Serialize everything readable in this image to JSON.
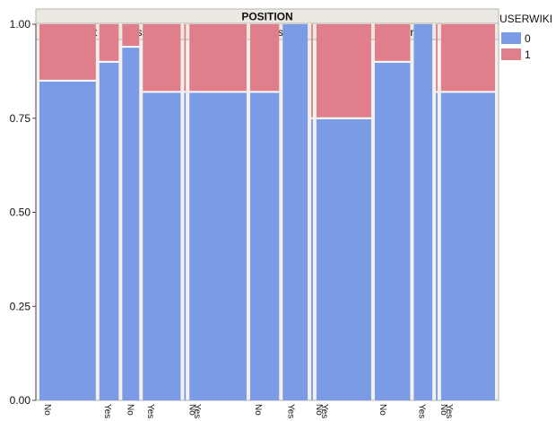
{
  "chart_data": {
    "type": "mosaic",
    "title": "POSITION",
    "xlabel": "",
    "ylabel": "",
    "ylim": [
      0,
      1
    ],
    "y_ticks": [
      "0.00",
      "0.25",
      "0.50",
      "0.75",
      "1.00"
    ],
    "legend": {
      "title": "USERWIKI",
      "placement": "right",
      "entries": [
        {
          "label": "0",
          "color": "#7b9be6"
        },
        {
          "label": "1",
          "color": "#e07f8b"
        }
      ]
    },
    "colors": {
      "0": "#7b9be6",
      "1": "#e07f8b",
      "header": "#ebe9e1"
    },
    "groups": [
      {
        "name": "Adjunct",
        "bars": [
          {
            "label": "No",
            "weight": 70,
            "proportion_0": 0.85,
            "proportion_1": 0.15
          },
          {
            "label": "Yes",
            "weight": 24,
            "proportion_0": 0.9,
            "proportion_1": 0.1
          }
        ]
      },
      {
        "name": "Assistant",
        "bars": [
          {
            "label": "No",
            "weight": 21,
            "proportion_0": 0.94,
            "proportion_1": 0.06
          },
          {
            "label": "Yes",
            "weight": 47,
            "proportion_0": 0.82,
            "proportion_1": 0.18
          }
        ]
      },
      {
        "name": "Associate",
        "bars": [
          {
            "label": "No",
            "weight": 2,
            "proportion_0": 0.82,
            "proportion_1": 0.18
          },
          {
            "label": "Yes",
            "weight": 71,
            "proportion_0": 0.82,
            "proportion_1": 0.18
          }
        ]
      },
      {
        "name": "Else",
        "bars": [
          {
            "label": "No",
            "weight": 36,
            "proportion_0": 0.82,
            "proportion_1": 0.18
          },
          {
            "label": "Yes",
            "weight": 31,
            "proportion_0": 1.0,
            "proportion_1": 0.0
          }
        ]
      },
      {
        "name": "Instructor",
        "bars": [
          {
            "label": "No",
            "weight": 2,
            "proportion_0": 0.75,
            "proportion_1": 0.25
          },
          {
            "label": "Yes",
            "weight": 68,
            "proportion_0": 0.75,
            "proportion_1": 0.25
          }
        ]
      },
      {
        "name": "Lecturer",
        "bars": [
          {
            "label": "No",
            "weight": 44,
            "proportion_0": 0.9,
            "proportion_1": 0.1
          },
          {
            "label": "Yes",
            "weight": 23,
            "proportion_0": 1.0,
            "proportion_1": 0.0
          }
        ]
      },
      {
        "name": "Professor",
        "bars": [
          {
            "label": "No",
            "weight": 2,
            "proportion_0": 0.82,
            "proportion_1": 0.18
          },
          {
            "label": "Yes",
            "weight": 67,
            "proportion_0": 0.82,
            "proportion_1": 0.18
          }
        ]
      }
    ]
  }
}
